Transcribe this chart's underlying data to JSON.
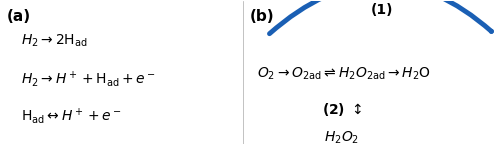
{
  "background_color": "#ffffff",
  "label_a": "(a)",
  "label_b": "(b)",
  "label_1": "(1)",
  "label_2": "(2)",
  "eq1": "$\\mathit{H}_2 \\rightarrow 2\\mathrm{H}_{\\mathrm{ad}}$",
  "eq2": "$\\mathit{H}_2 \\rightarrow \\mathit{H}^+ + \\mathrm{H}_{\\mathrm{ad}} + \\mathit{e}^-$",
  "eq3": "$\\mathrm{H}_{\\mathrm{ad}} \\leftrightarrow \\mathit{H}^+ + \\mathit{e}^-$",
  "eq_orr": "$\\mathit{O}_2 \\rightarrow \\mathit{O}_{\\mathrm{2ad}} \\rightleftharpoons \\mathit{H}_2\\mathit{O}_{\\mathrm{2ad}} \\rightarrow \\mathit{H}_2\\mathrm{O}$",
  "eq_indirect_arrow": "$\\updownarrow$",
  "eq_h2o2": "$\\mathit{H}_2\\mathit{O}_2$",
  "arrow_color": "#1a5fb4",
  "arrow_lw": 3.5,
  "fontsize_label": 11,
  "fontsize_eq": 10,
  "fontsize_label2": 10
}
